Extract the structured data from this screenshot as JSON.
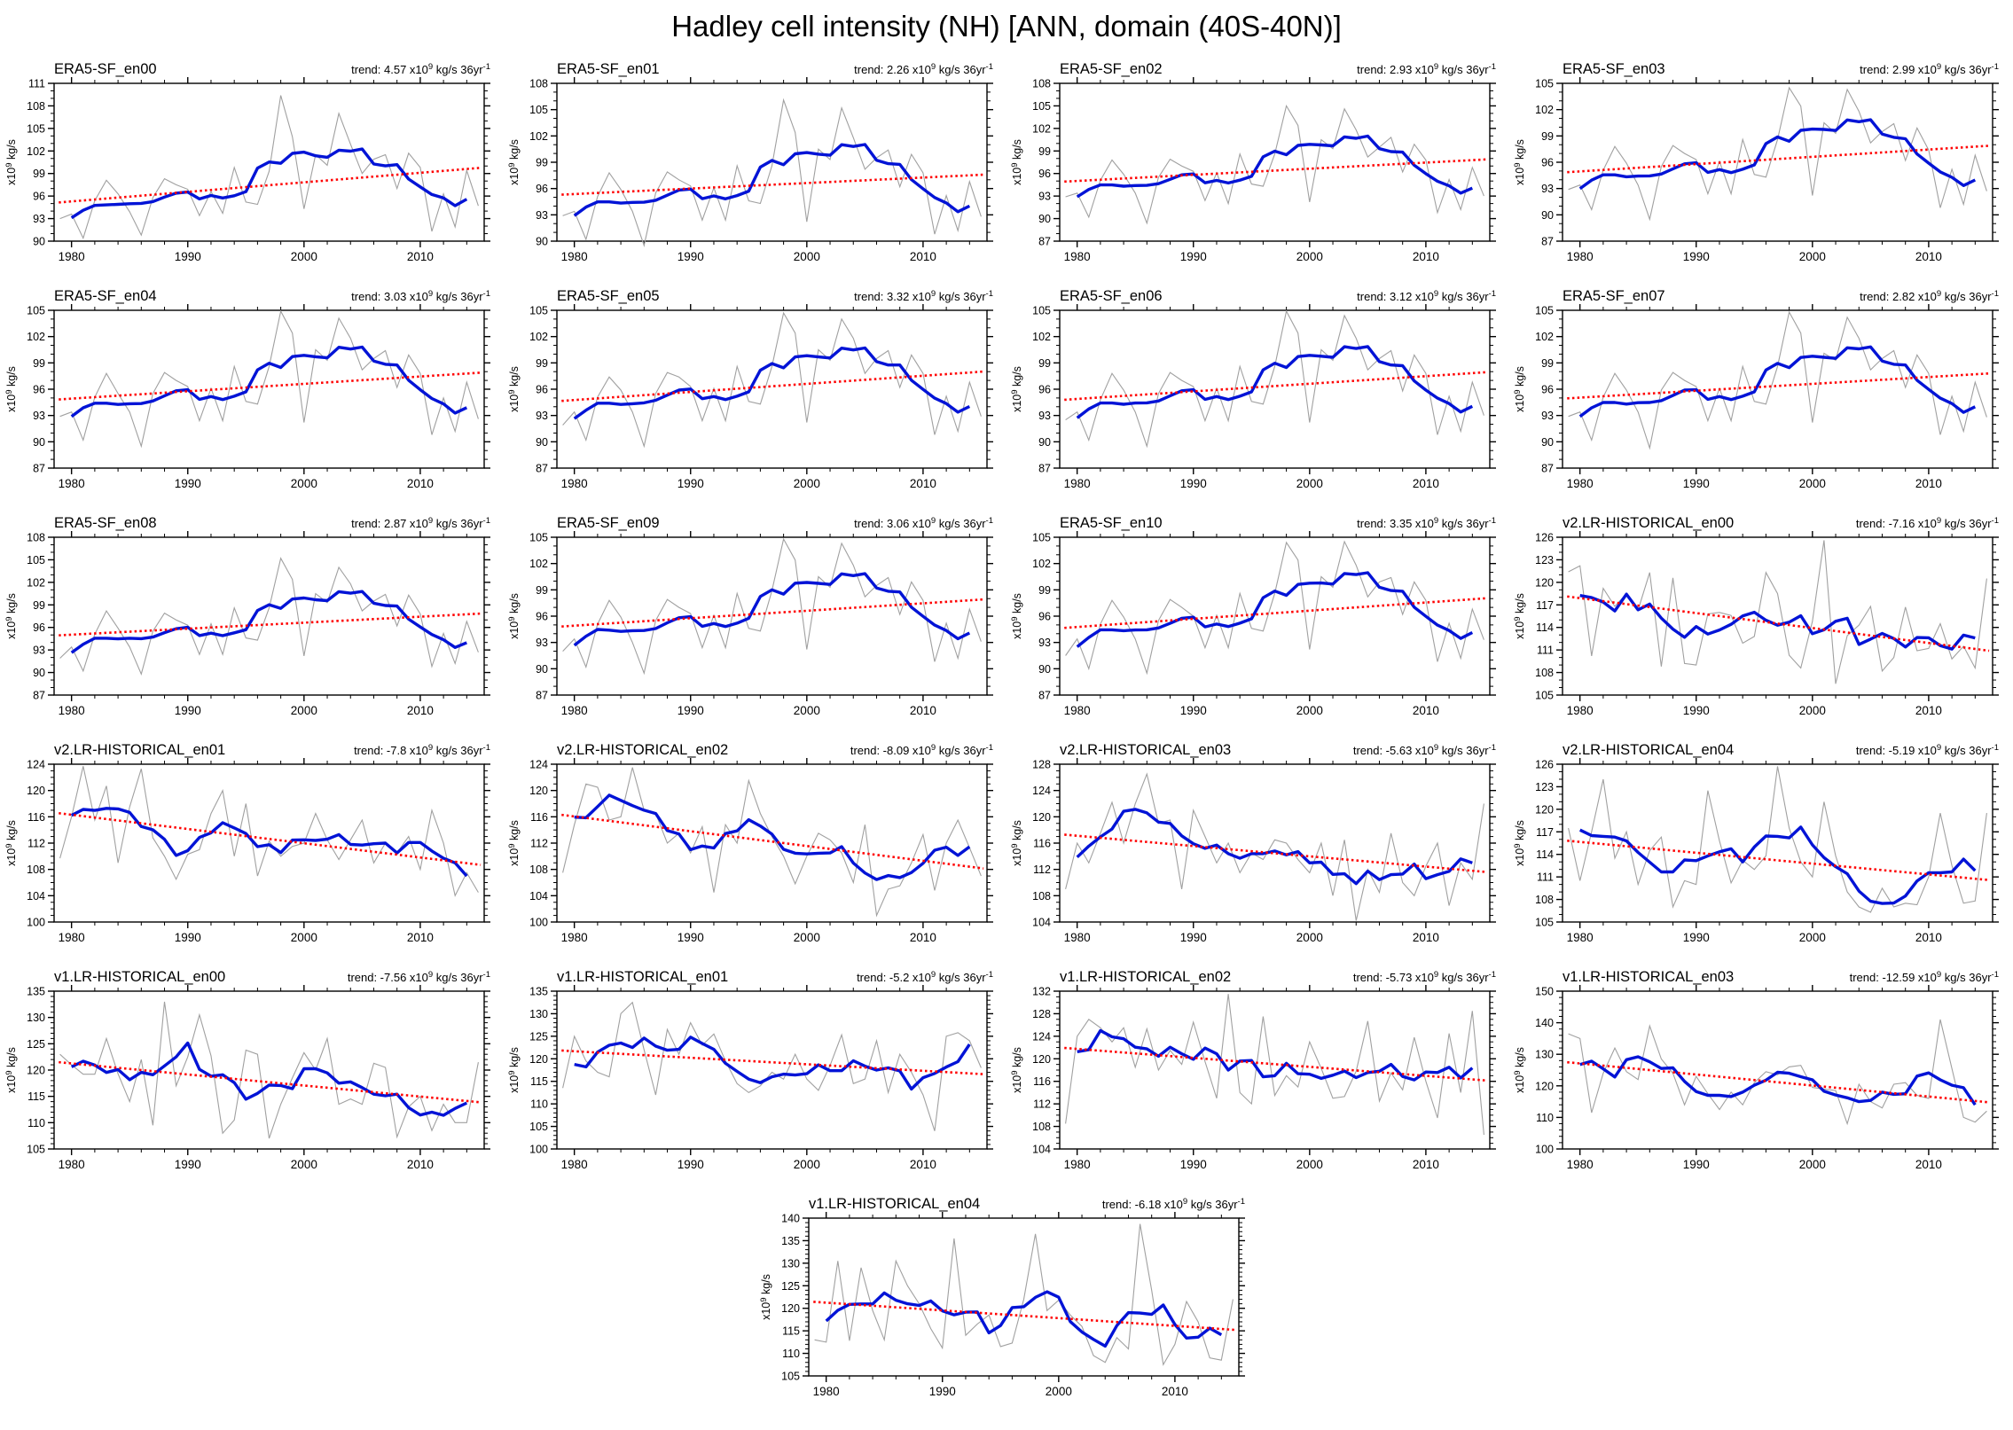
{
  "page_title": "Hadley cell intensity (NH) [ANN, domain (40S-40N)]",
  "labels": {
    "trend_prefix": "trend:",
    "scale_base": "x10",
    "scale_exp": "9",
    "unit": "kg/s",
    "per_base": "36yr",
    "per_exp": "-1",
    "ylabel_base": "x10",
    "ylabel_exp": "9",
    "ylabel_unit": "kg/s"
  },
  "chart_data": {
    "type": "line",
    "x_axis": {
      "years_start": 1979,
      "years_end": 2015,
      "xlim": [
        1978.5,
        2015.5
      ],
      "xticks": [
        1980,
        1990,
        2000,
        2010
      ],
      "xminor_step": 2
    },
    "series_legend": [
      "annual (thin gray)",
      "5-yr running mean (thick blue)",
      "linear trend (red dotted)"
    ],
    "colors": {
      "annual": "#a0a0a0",
      "smooth": "#0013d6",
      "trend": "#ff0000",
      "axis": "#000000"
    },
    "panels": [
      {
        "title": "ERA5-SF_en00",
        "trend_label": "4.57",
        "trend_per_36yr": 4.57,
        "ylim": [
          90,
          111
        ],
        "ytick_step": 3,
        "yminor_step": 1,
        "annual": [
          93.0,
          93.6,
          90.4,
          95.4,
          98.1,
          96.3,
          93.9,
          90.8,
          95.8,
          98.3,
          97.5,
          96.9,
          93.4,
          96.6,
          93.7,
          99.8,
          95.2,
          94.9,
          99.3,
          109.4,
          103.9,
          94.3,
          101.5,
          100.1,
          107.0,
          102.9,
          99.0,
          100.9,
          101.5,
          97.0,
          101.7,
          99.8,
          91.3,
          96.3,
          91.9,
          99.4,
          94.7
        ]
      },
      {
        "title": "ERA5-SF_en01",
        "trend_label": "2.26",
        "trend_per_36yr": 2.26,
        "ylim": [
          90,
          108
        ],
        "ytick_step": 3,
        "yminor_step": 1,
        "annual": [
          92.9,
          93.4,
          90.2,
          95.1,
          97.8,
          95.9,
          93.4,
          89.5,
          95.5,
          97.9,
          97.0,
          96.3,
          92.4,
          96.1,
          92.4,
          98.6,
          94.6,
          94.3,
          98.6,
          106.1,
          102.4,
          92.2,
          100.5,
          99.3,
          105.2,
          101.8,
          98.2,
          99.5,
          100.4,
          96.2,
          99.9,
          97.8,
          90.8,
          95.2,
          91.2,
          96.8,
          92.8
        ]
      },
      {
        "title": "ERA5-SF_en02",
        "trend_label": "2.93",
        "trend_per_36yr": 2.93,
        "ylim": [
          87,
          108
        ],
        "ytick_step": 3,
        "yminor_step": 1,
        "annual": [
          92.9,
          93.4,
          90.2,
          95.1,
          97.8,
          95.9,
          93.4,
          89.4,
          95.5,
          97.9,
          97.0,
          96.3,
          92.4,
          96.1,
          92.0,
          98.6,
          94.6,
          94.3,
          98.6,
          105.0,
          102.4,
          92.2,
          100.5,
          99.3,
          104.6,
          101.8,
          98.2,
          99.5,
          100.8,
          96.2,
          99.9,
          97.8,
          90.8,
          95.2,
          91.2,
          96.8,
          93.0
        ]
      },
      {
        "title": "ERA5-SF_en03",
        "trend_label": "2.99",
        "trend_per_36yr": 2.99,
        "ylim": [
          87,
          105
        ],
        "ytick_step": 3,
        "yminor_step": 1,
        "annual": [
          92.9,
          93.4,
          90.6,
          95.1,
          97.8,
          95.9,
          93.4,
          89.5,
          95.5,
          97.9,
          97.0,
          96.3,
          92.4,
          96.1,
          92.4,
          98.6,
          94.6,
          94.3,
          98.6,
          104.5,
          102.4,
          92.2,
          100.5,
          99.3,
          104.3,
          101.8,
          98.2,
          99.5,
          100.4,
          96.2,
          99.9,
          97.4,
          90.8,
          95.2,
          91.2,
          96.8,
          92.7
        ]
      },
      {
        "title": "ERA5-SF_en04",
        "trend_label": "3.03",
        "trend_per_36yr": 3.03,
        "ylim": [
          87,
          105
        ],
        "ytick_step": 3,
        "yminor_step": 1,
        "annual": [
          92.9,
          93.4,
          90.2,
          95.1,
          97.8,
          95.5,
          93.4,
          89.5,
          95.5,
          97.9,
          97.0,
          96.3,
          92.4,
          96.1,
          92.4,
          98.6,
          94.6,
          94.3,
          98.6,
          104.9,
          102.4,
          92.2,
          100.5,
          99.3,
          104.1,
          101.8,
          98.2,
          99.5,
          100.4,
          96.2,
          99.9,
          97.8,
          90.8,
          95.0,
          91.2,
          96.8,
          92.6
        ]
      },
      {
        "title": "ERA5-SF_en05",
        "trend_label": "3.32",
        "trend_per_36yr": 3.32,
        "ylim": [
          87,
          105
        ],
        "ytick_step": 3,
        "yminor_step": 1,
        "annual": [
          91.9,
          93.4,
          90.2,
          95.1,
          97.4,
          95.9,
          93.4,
          89.5,
          95.5,
          97.9,
          97.4,
          96.3,
          92.4,
          96.1,
          92.4,
          98.6,
          94.6,
          94.3,
          98.6,
          104.7,
          102.4,
          92.2,
          100.5,
          99.3,
          104.0,
          101.8,
          97.8,
          99.5,
          100.4,
          96.2,
          99.9,
          97.8,
          90.8,
          95.2,
          91.2,
          96.8,
          92.9
        ]
      },
      {
        "title": "ERA5-SF_en06",
        "trend_label": "3.12",
        "trend_per_36yr": 3.12,
        "ylim": [
          87,
          105
        ],
        "ytick_step": 3,
        "yminor_step": 1,
        "annual": [
          92.5,
          93.4,
          90.2,
          94.8,
          97.8,
          95.9,
          93.4,
          89.5,
          95.5,
          97.9,
          97.0,
          96.3,
          92.4,
          96.1,
          92.4,
          98.6,
          94.6,
          94.3,
          98.6,
          104.9,
          102.4,
          92.2,
          100.5,
          99.3,
          104.4,
          101.8,
          98.2,
          99.5,
          100.4,
          95.8,
          99.9,
          97.8,
          90.8,
          95.2,
          91.2,
          96.8,
          93.0
        ]
      },
      {
        "title": "ERA5-SF_en07",
        "trend_label": "2.82",
        "trend_per_36yr": 2.82,
        "ylim": [
          87,
          105
        ],
        "ytick_step": 3,
        "yminor_step": 1,
        "annual": [
          92.9,
          93.4,
          90.2,
          95.1,
          97.8,
          95.9,
          93.4,
          89.3,
          95.9,
          97.9,
          97.0,
          96.3,
          92.4,
          96.1,
          92.4,
          98.6,
          94.6,
          94.3,
          98.6,
          104.8,
          102.4,
          92.2,
          100.1,
          99.3,
          104.2,
          101.8,
          98.2,
          99.5,
          100.4,
          96.2,
          99.9,
          97.8,
          90.8,
          95.2,
          91.2,
          96.8,
          92.8
        ]
      },
      {
        "title": "ERA5-SF_en08",
        "trend_label": "2.87",
        "trend_per_36yr": 2.87,
        "ylim": [
          87,
          108
        ],
        "ytick_step": 3,
        "yminor_step": 1,
        "annual": [
          91.9,
          93.4,
          90.2,
          95.1,
          98.2,
          95.9,
          93.4,
          89.8,
          95.5,
          97.9,
          97.0,
          96.3,
          92.4,
          96.5,
          92.4,
          98.6,
          94.6,
          94.3,
          98.6,
          105.2,
          102.4,
          92.2,
          100.5,
          99.3,
          104.0,
          101.8,
          98.2,
          99.5,
          100.4,
          96.2,
          100.3,
          97.8,
          90.8,
          95.2,
          91.2,
          96.8,
          92.7
        ]
      },
      {
        "title": "ERA5-SF_en09",
        "trend_label": "3.06",
        "trend_per_36yr": 3.06,
        "ylim": [
          87,
          105
        ],
        "ytick_step": 3,
        "yminor_step": 1,
        "annual": [
          92.0,
          93.4,
          90.2,
          95.1,
          97.8,
          95.9,
          93.0,
          89.5,
          95.5,
          97.9,
          97.0,
          96.3,
          92.4,
          96.1,
          92.4,
          98.6,
          94.6,
          94.3,
          98.9,
          104.8,
          102.4,
          92.2,
          100.5,
          99.3,
          104.3,
          101.8,
          98.2,
          99.5,
          100.4,
          96.2,
          99.9,
          97.8,
          90.8,
          95.2,
          91.2,
          96.8,
          93.1
        ]
      },
      {
        "title": "ERA5-SF_en10",
        "trend_label": "3.35",
        "trend_per_36yr": 3.35,
        "ylim": [
          87,
          105
        ],
        "ytick_step": 3,
        "yminor_step": 1,
        "annual": [
          91.5,
          93.4,
          90.0,
          95.1,
          97.8,
          95.9,
          93.4,
          89.5,
          95.5,
          97.9,
          97.0,
          96.0,
          92.4,
          96.1,
          92.4,
          98.6,
          94.6,
          94.3,
          98.6,
          104.4,
          102.4,
          92.2,
          100.5,
          99.3,
          104.5,
          101.8,
          98.2,
          99.9,
          100.4,
          96.2,
          99.9,
          97.8,
          90.8,
          95.2,
          91.2,
          96.8,
          93.3
        ]
      },
      {
        "title": "v2.LR-HISTORICAL_en00",
        "trend_label": "-7.16",
        "trend_per_36yr": -7.16,
        "ylim": [
          105,
          126
        ],
        "ytick_step": 3,
        "yminor_step": 1,
        "annual": [
          121.4,
          122.2,
          110.2,
          119.2,
          116.8,
          118.5,
          116.3,
          121.3,
          108.8,
          120.6,
          109.2,
          109.0,
          115.8,
          116.0,
          115.6,
          111.9,
          112.8,
          121.3,
          118.5,
          110.3,
          108.6,
          114.8,
          125.6,
          106.5,
          112.9,
          114.3,
          116.8,
          108.2,
          110.0,
          116.7,
          110.9,
          111.2,
          114.5,
          109.8,
          111.5,
          108.6,
          120.5
        ]
      },
      {
        "title": "v2.LR-HISTORICAL_en01",
        "trend_label": "-7.8",
        "trend_per_36yr": -7.8,
        "ylim": [
          100,
          124
        ],
        "ytick_step": 4,
        "yminor_step": 1,
        "annual": [
          109.7,
          116.0,
          123.7,
          115.5,
          120.7,
          109.0,
          117.5,
          123.3,
          112.8,
          110.0,
          106.5,
          110.3,
          111.0,
          116.5,
          120.0,
          110.0,
          118.0,
          107.0,
          112.3,
          110.0,
          111.5,
          112.0,
          116.5,
          112.5,
          109.5,
          112.5,
          115.5,
          109.0,
          112.0,
          110.5,
          113.0,
          108.0,
          117.0,
          112.0,
          104.0,
          107.5,
          104.5
        ]
      },
      {
        "title": "v2.LR-HISTORICAL_en02",
        "trend_label": "-8.09",
        "trend_per_36yr": -8.09,
        "ylim": [
          100,
          124
        ],
        "ytick_step": 4,
        "yminor_step": 1,
        "annual": [
          107.5,
          114.8,
          121.0,
          120.5,
          115.5,
          116.0,
          123.5,
          117.0,
          116.5,
          112.0,
          113.5,
          110.5,
          114.5,
          104.5,
          114.8,
          112.0,
          121.5,
          116.5,
          113.0,
          110.0,
          105.8,
          110.0,
          113.5,
          112.5,
          110.5,
          106.0,
          114.8,
          101.0,
          105.0,
          105.5,
          109.0,
          113.3,
          104.8,
          112.0,
          115.5,
          111.3,
          107.0
        ]
      },
      {
        "title": "v2.LR-HISTORICAL_en03",
        "trend_label": "-5.63",
        "trend_per_36yr": -5.63,
        "ylim": [
          104,
          128
        ],
        "ytick_step": 4,
        "yminor_step": 1,
        "annual": [
          109.0,
          116.0,
          113.0,
          117.5,
          122.2,
          116.0,
          122.0,
          126.5,
          119.0,
          119.5,
          109.0,
          121.0,
          117.0,
          113.0,
          116.0,
          111.5,
          114.5,
          113.5,
          116.5,
          116.0,
          113.5,
          111.5,
          116.0,
          108.0,
          116.5,
          104.2,
          112.0,
          108.5,
          117.5,
          110.0,
          108.0,
          112.5,
          116.0,
          106.5,
          113.0,
          110.5,
          122.0
        ]
      },
      {
        "title": "v2.LR-HISTORICAL_en04",
        "trend_label": "-5.19",
        "trend_per_36yr": -5.19,
        "ylim": [
          105,
          126
        ],
        "ytick_step": 3,
        "yminor_step": 1,
        "annual": [
          117.5,
          110.5,
          117.0,
          124.0,
          113.5,
          117.0,
          110.0,
          114.5,
          116.3,
          107.0,
          110.5,
          110.0,
          122.5,
          115.8,
          110.2,
          113.2,
          112.0,
          113.8,
          125.7,
          117.5,
          113.0,
          111.0,
          121.0,
          113.8,
          109.0,
          107.0,
          106.3,
          109.5,
          107.0,
          107.5,
          107.3,
          111.0,
          119.5,
          112.5,
          107.5,
          107.8,
          119.5
        ]
      },
      {
        "title": "v1.LR-HISTORICAL_en00",
        "trend_label": "-7.56",
        "trend_per_36yr": -7.56,
        "ylim": [
          105,
          135
        ],
        "ytick_step": 5,
        "yminor_step": 1,
        "annual": [
          123.0,
          121.0,
          119.2,
          119.2,
          126.0,
          119.3,
          114.0,
          122.0,
          109.5,
          133.0,
          117.0,
          122.5,
          130.5,
          122.7,
          108.0,
          110.5,
          123.8,
          123.0,
          107.0,
          113.5,
          118.5,
          123.3,
          120.0,
          126.0,
          113.5,
          114.5,
          113.5,
          121.3,
          120.5,
          107.3,
          113.0,
          115.0,
          108.5,
          113.5,
          110.0,
          110.0,
          121.5
        ]
      },
      {
        "title": "v1.LR-HISTORICAL_en01",
        "trend_label": "-5.2",
        "trend_per_36yr": -5.2,
        "ylim": [
          100,
          135
        ],
        "ytick_step": 5,
        "yminor_step": 1,
        "annual": [
          113.5,
          125.0,
          119.5,
          117.0,
          116.0,
          130.0,
          132.5,
          122.0,
          112.0,
          126.5,
          121.0,
          128.0,
          123.0,
          125.5,
          119.5,
          114.5,
          112.5,
          114.0,
          117.0,
          115.5,
          121.0,
          115.5,
          113.0,
          118.5,
          125.3,
          114.5,
          115.5,
          124.0,
          112.5,
          121.0,
          117.0,
          112.0,
          104.0,
          125.0,
          125.8,
          124.0,
          118.0
        ]
      },
      {
        "title": "v1.LR-HISTORICAL_en02",
        "trend_label": "-5.73",
        "trend_per_36yr": -5.73,
        "ylim": [
          104,
          132
        ],
        "ytick_step": 4,
        "yminor_step": 1,
        "annual": [
          108.5,
          124.0,
          127.0,
          125.5,
          123.0,
          125.5,
          118.5,
          125.3,
          118.0,
          121.5,
          119.0,
          126.5,
          119.5,
          113.0,
          131.5,
          114.0,
          112.0,
          127.5,
          113.5,
          117.0,
          115.0,
          123.0,
          118.3,
          113.0,
          113.3,
          117.8,
          126.7,
          112.5,
          117.5,
          114.5,
          123.8,
          116.0,
          109.5,
          124.5,
          114.0,
          128.5,
          106.5
        ]
      },
      {
        "title": "v1.LR-HISTORICAL_en03",
        "trend_label": "-12.59",
        "trend_per_36yr": -12.59,
        "ylim": [
          100,
          150
        ],
        "ytick_step": 10,
        "yminor_step": 2,
        "annual": [
          136.5,
          135.0,
          111.5,
          124.0,
          132.0,
          124.5,
          122.0,
          139.0,
          128.5,
          124.0,
          114.0,
          123.0,
          117.5,
          112.5,
          118.0,
          114.0,
          121.0,
          124.5,
          123.5,
          126.0,
          126.5,
          119.5,
          119.0,
          118.5,
          108.0,
          120.5,
          115.0,
          113.0,
          120.5,
          121.0,
          117.0,
          116.0,
          141.0,
          125.5,
          110.0,
          108.5,
          112.0
        ]
      },
      {
        "title": "v1.LR-HISTORICAL_en04",
        "trend_label": "-6.18",
        "trend_per_36yr": -6.18,
        "ylim": [
          105,
          140
        ],
        "ytick_step": 5,
        "yminor_step": 1,
        "annual": [
          113.0,
          112.5,
          130.5,
          112.8,
          129.0,
          119.5,
          113.0,
          130.5,
          125.0,
          121.0,
          115.5,
          111.2,
          135.5,
          114.0,
          116.5,
          118.5,
          111.5,
          112.3,
          122.0,
          136.5,
          119.5,
          121.8,
          118.5,
          116.0,
          109.5,
          108.0,
          113.5,
          111.0,
          138.7,
          124.0,
          107.5,
          112.0,
          121.5,
          117.0,
          109.0,
          108.5,
          122.0
        ]
      }
    ]
  }
}
